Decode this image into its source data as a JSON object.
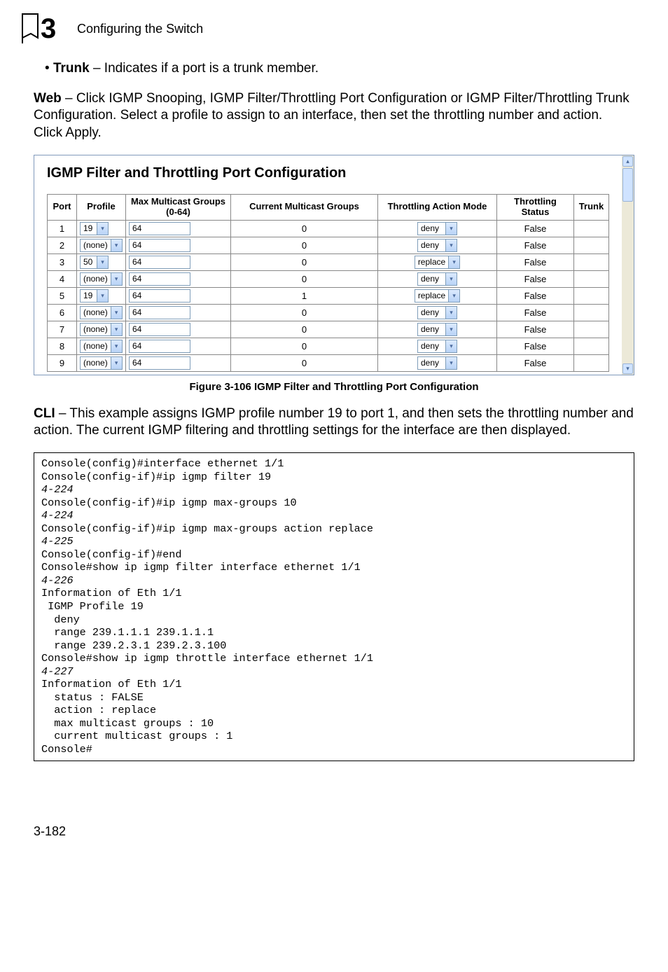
{
  "chapter": {
    "num": "3",
    "title": "Configuring the Switch"
  },
  "bullet": {
    "term": "Trunk",
    "desc": " – Indicates if a port is a trunk member."
  },
  "web_para": {
    "lead": "Web",
    "rest": " – Click IGMP Snooping, IGMP Filter/Throttling Port Configuration or IGMP Filter/Throttling Trunk Configuration. Select a profile to assign to an interface, then set the throttling number and action. Click Apply."
  },
  "fig": {
    "title": "IGMP Filter and Throttling Port Configuration",
    "headers": {
      "port": "Port",
      "profile": "Profile",
      "max": "Max Multicast Groups (0-64)",
      "current": "Current Multicast Groups",
      "action": "Throttling Action Mode",
      "status": "Throttling Status",
      "trunk": "Trunk"
    },
    "rows": [
      {
        "port": "1",
        "profile": "19",
        "max": "64",
        "current": "0",
        "action": "deny",
        "status": "False",
        "trunk": ""
      },
      {
        "port": "2",
        "profile": "(none)",
        "max": "64",
        "current": "0",
        "action": "deny",
        "status": "False",
        "trunk": ""
      },
      {
        "port": "3",
        "profile": "50",
        "max": "64",
        "current": "0",
        "action": "replace",
        "status": "False",
        "trunk": ""
      },
      {
        "port": "4",
        "profile": "(none)",
        "max": "64",
        "current": "0",
        "action": "deny",
        "status": "False",
        "trunk": ""
      },
      {
        "port": "5",
        "profile": "19",
        "max": "64",
        "current": "1",
        "action": "replace",
        "status": "False",
        "trunk": ""
      },
      {
        "port": "6",
        "profile": "(none)",
        "max": "64",
        "current": "0",
        "action": "deny",
        "status": "False",
        "trunk": ""
      },
      {
        "port": "7",
        "profile": "(none)",
        "max": "64",
        "current": "0",
        "action": "deny",
        "status": "False",
        "trunk": ""
      },
      {
        "port": "8",
        "profile": "(none)",
        "max": "64",
        "current": "0",
        "action": "deny",
        "status": "False",
        "trunk": ""
      },
      {
        "port": "9",
        "profile": "(none)",
        "max": "64",
        "current": "0",
        "action": "deny",
        "status": "False",
        "trunk": ""
      }
    ],
    "colors": {
      "select_border": "#7f9db9",
      "select_bg1": "#dbeafe",
      "select_bg2": "#b9d3f6"
    }
  },
  "caption": "Figure 3-106  IGMP Filter and Throttling Port Configuration",
  "cli_para": {
    "lead": "CLI",
    "rest": " – This example assigns IGMP profile number 19 to port 1, and then sets the throttling number and action. The current IGMP filtering and throttling settings for the interface are then displayed."
  },
  "code": {
    "l1": "Console(config)#interface ethernet 1/1",
    "l2": "Console(config-if)#ip igmp filter 19",
    "r2": "4-224",
    "l3": "Console(config-if)#ip igmp max-groups 10",
    "r3": "4-224",
    "l4": "Console(config-if)#ip igmp max-groups action replace",
    "r4": "4-225",
    "l5": "Console(config-if)#end",
    "l6": "Console#show ip igmp filter interface ethernet 1/1",
    "r6": "4-226",
    "l7": "Information of Eth 1/1",
    "l8": " IGMP Profile 19",
    "l9": "  deny",
    "l10": "  range 239.1.1.1 239.1.1.1",
    "l11": "  range 239.2.3.1 239.2.3.100",
    "l12": "Console#show ip igmp throttle interface ethernet 1/1",
    "r12": "4-227",
    "l13": "Information of Eth 1/1",
    "l14": "  status : FALSE",
    "l15": "  action : replace",
    "l16": "  max multicast groups : 10",
    "l17": "  current multicast groups : 1",
    "l18": "Console#"
  },
  "footer": "3-182"
}
